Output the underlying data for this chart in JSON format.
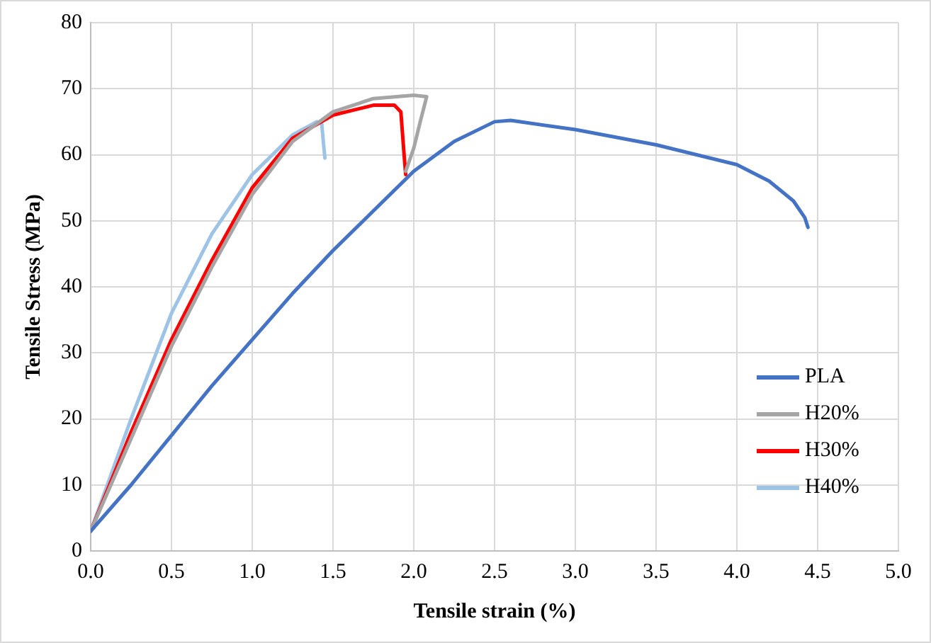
{
  "chart_data": {
    "type": "line",
    "xlabel": "Tensile strain (%)",
    "ylabel": "Tensile Stress (MPa)",
    "xlim": [
      0,
      5
    ],
    "xticks": [
      {
        "value": 0,
        "label": "0.0"
      },
      {
        "value": 0.5,
        "label": "0.5"
      },
      {
        "value": 1,
        "label": "1.0"
      },
      {
        "value": 1.5,
        "label": "1.5"
      },
      {
        "value": 2,
        "label": "2.0"
      },
      {
        "value": 2.5,
        "label": "2.5"
      },
      {
        "value": 3,
        "label": "3.0"
      },
      {
        "value": 3.5,
        "label": "3.5"
      },
      {
        "value": 4,
        "label": "4.0"
      },
      {
        "value": 4.5,
        "label": "4.5"
      },
      {
        "value": 5,
        "label": "5.0"
      }
    ],
    "ylim": [
      0,
      80
    ],
    "yticks": [
      0,
      10,
      20,
      30,
      40,
      50,
      60,
      70,
      80
    ],
    "grid": true,
    "legend": "bottom right",
    "marker": "none",
    "line_style": "solid",
    "series": [
      {
        "name": "PLA",
        "color": "#4472c4",
        "x": [
          0,
          0.25,
          0.5,
          0.75,
          1,
          1.25,
          1.5,
          1.75,
          2,
          2.25,
          2.5,
          2.6,
          3,
          3.5,
          4,
          4.2,
          4.35,
          4.42,
          4.44
        ],
        "values": [
          3,
          10,
          17.5,
          25,
          32,
          39,
          45.5,
          51.5,
          57.5,
          62,
          65,
          65.2,
          63.8,
          61.5,
          58.5,
          56,
          53,
          50.5,
          49
        ]
      },
      {
        "name": "H20%",
        "color": "#a5a5a5",
        "x": [
          0,
          0.25,
          0.5,
          0.75,
          1,
          1.25,
          1.5,
          1.75,
          2,
          2.08,
          2.04,
          2,
          1.95
        ],
        "values": [
          3,
          17,
          31,
          43,
          54,
          62,
          66.5,
          68.5,
          69,
          68.8,
          65,
          61,
          57.5
        ]
      },
      {
        "name": "H30%",
        "color": "#ff0000",
        "x": [
          0,
          0.25,
          0.5,
          0.75,
          1,
          1.25,
          1.5,
          1.75,
          1.88,
          1.92,
          1.94,
          1.95
        ],
        "values": [
          3,
          18,
          32,
          44,
          55,
          62.5,
          66,
          67.5,
          67.5,
          66.5,
          60,
          57
        ]
      },
      {
        "name": "H40%",
        "color": "#9dc3e6",
        "x": [
          0,
          0.25,
          0.5,
          0.75,
          1,
          1.25,
          1.4,
          1.43,
          1.44,
          1.45
        ],
        "values": [
          3,
          20,
          36,
          48,
          57,
          63,
          65,
          64.8,
          62,
          59.5
        ]
      }
    ]
  }
}
